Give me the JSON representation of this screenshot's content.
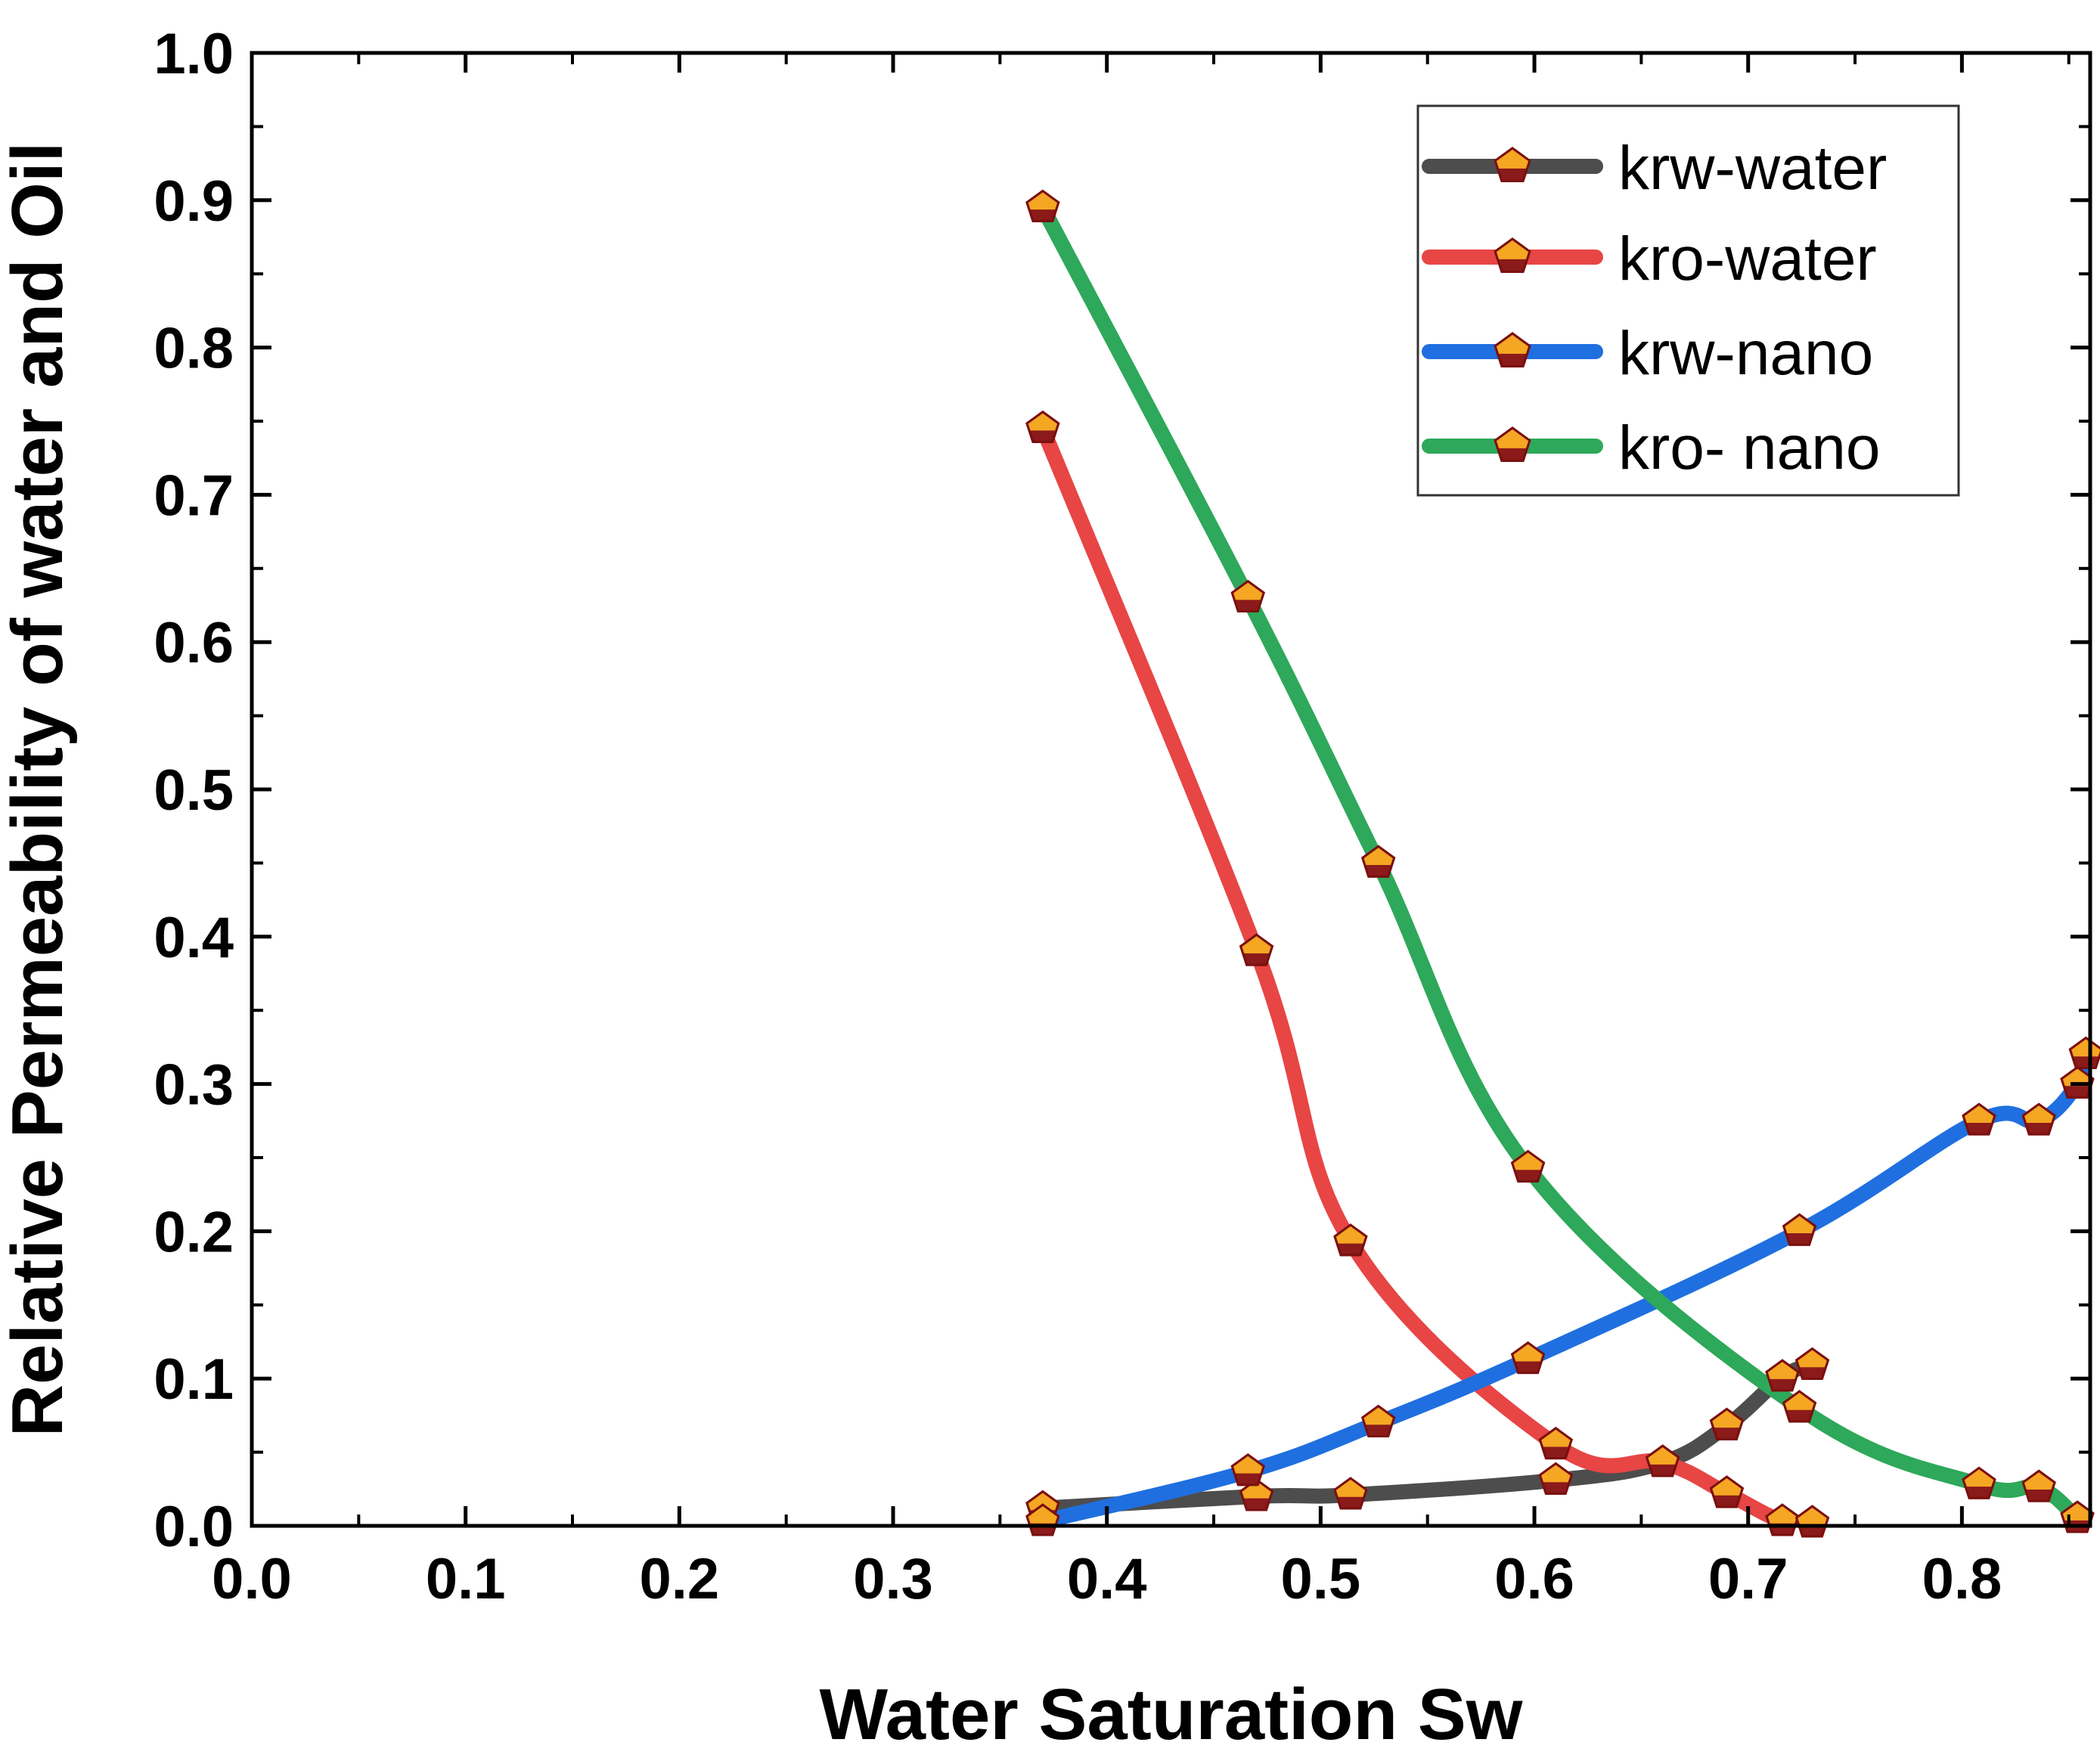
{
  "chart_data": {
    "type": "line",
    "title": "",
    "xlabel": "Water Saturation Sw",
    "ylabel": "Relative Permeability of water and Oil",
    "xlim": [
      0.0,
      0.86
    ],
    "ylim": [
      0.0,
      1.0
    ],
    "x_ticks": [
      "0.0",
      "0.1",
      "0.2",
      "0.3",
      "0.4",
      "0.5",
      "0.6",
      "0.7",
      "0.8"
    ],
    "y_ticks": [
      "0.0",
      "0.1",
      "0.2",
      "0.3",
      "0.4",
      "0.5",
      "0.6",
      "0.7",
      "0.8",
      "0.9",
      "1.0"
    ],
    "legend_position": "top-right",
    "marker": "pentagon",
    "marker_colors": {
      "upper": "#f5a623",
      "lower": "#8b1a1a",
      "outline": "#7a1010"
    },
    "series": [
      {
        "name": "krw-water",
        "color": "#4d4d4d",
        "x": [
          0.37,
          0.47,
          0.514,
          0.61,
          0.66,
          0.69,
          0.716,
          0.73
        ],
        "y": [
          0.012,
          0.02,
          0.021,
          0.031,
          0.043,
          0.068,
          0.101,
          0.109
        ]
      },
      {
        "name": "kro-water",
        "color": "#e84545",
        "x": [
          0.37,
          0.47,
          0.514,
          0.61,
          0.66,
          0.69,
          0.716,
          0.73
        ],
        "y": [
          0.745,
          0.39,
          0.193,
          0.055,
          0.043,
          0.022,
          0.003,
          0.002
        ]
      },
      {
        "name": "krw-nano",
        "color": "#1f6fe0",
        "x": [
          0.37,
          0.466,
          0.527,
          0.597,
          0.724,
          0.808,
          0.836,
          0.854,
          0.858
        ],
        "y": [
          0.003,
          0.037,
          0.07,
          0.113,
          0.2,
          0.275,
          0.275,
          0.3,
          0.32
        ]
      },
      {
        "name": "kro- nano",
        "color": "#2ea85a",
        "x": [
          0.37,
          0.466,
          0.527,
          0.597,
          0.724,
          0.808,
          0.836,
          0.854
        ],
        "y": [
          0.895,
          0.63,
          0.45,
          0.243,
          0.08,
          0.028,
          0.026,
          0.005
        ]
      }
    ]
  }
}
